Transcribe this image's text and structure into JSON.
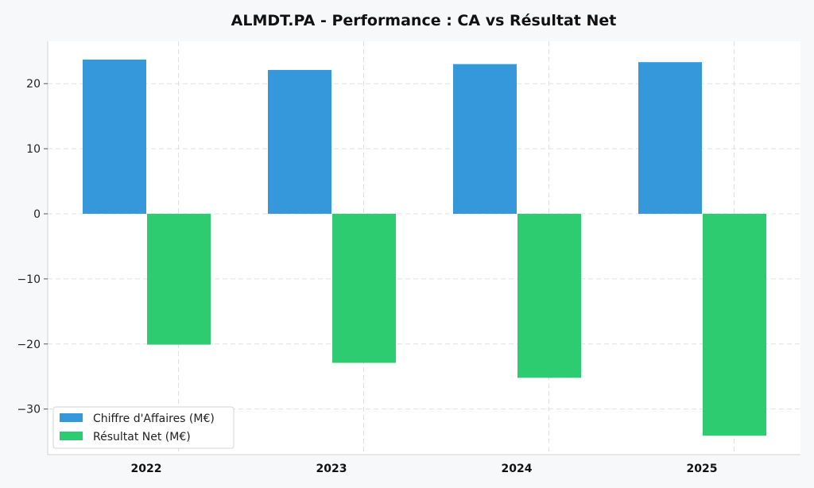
{
  "chart_data": {
    "type": "bar",
    "title": "ALMDT.PA - Performance : CA vs Résultat Net",
    "xlabel": "",
    "ylabel": "",
    "categories": [
      "2022",
      "2023",
      "2024",
      "2025"
    ],
    "series": [
      {
        "name": "Chiffre d'Affaires (M€)",
        "color": "#3498db",
        "values": [
          23.7,
          22.1,
          23.0,
          23.3
        ]
      },
      {
        "name": "Résultat Net (M€)",
        "color": "#2ecc71",
        "values": [
          -20.1,
          -22.9,
          -25.2,
          -34.1
        ]
      }
    ],
    "ylim": [
      -37,
      26.5
    ],
    "yticks": [
      20,
      10,
      0,
      -10,
      -20,
      -30
    ],
    "ytick_labels": [
      "20",
      "10",
      "0",
      "−10",
      "−20",
      "−30"
    ],
    "grid": true,
    "legend_position": "lower-left"
  }
}
